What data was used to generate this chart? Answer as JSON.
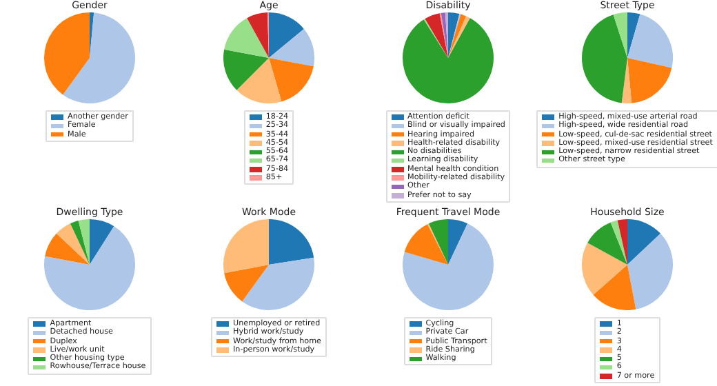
{
  "chart_data": [
    {
      "type": "pie",
      "title": "Gender",
      "categories": [
        "Another gender",
        "Female",
        "Male"
      ],
      "values": [
        1.5,
        58.5,
        40
      ],
      "colors": [
        "#1f77b4",
        "#aec7e8",
        "#ff7f0e"
      ],
      "legend": "bottom"
    },
    {
      "type": "pie",
      "title": "Age",
      "categories": [
        "18-24",
        "25-34",
        "35-44",
        "45-54",
        "55-64",
        "65-74",
        "75-84",
        "85+"
      ],
      "values": [
        14,
        14,
        17.5,
        17,
        15.5,
        14,
        7.5,
        0.5
      ],
      "colors": [
        "#1f77b4",
        "#aec7e8",
        "#ff7f0e",
        "#ffbb78",
        "#2ca02c",
        "#98df8a",
        "#d62728",
        "#ff9896"
      ],
      "legend": "bottom"
    },
    {
      "type": "pie",
      "title": "Disability",
      "categories": [
        "Attention deficit",
        "Blind or visually impaired",
        "Hearing impaired",
        "Health-related disability",
        "No disabilities",
        "Learning disability",
        "Mental health condition",
        "Mobility-related disability",
        "Other",
        "Prefer not to say"
      ],
      "values": [
        4,
        0.5,
        2,
        1.5,
        83,
        0.5,
        5.5,
        0.5,
        1.5,
        1
      ],
      "colors": [
        "#1f77b4",
        "#aec7e8",
        "#ff7f0e",
        "#ffbb78",
        "#2ca02c",
        "#98df8a",
        "#d62728",
        "#ff9896",
        "#9467bd",
        "#c5b0d5"
      ],
      "legend": "bottom"
    },
    {
      "type": "pie",
      "title": "Street Type",
      "categories": [
        "High-speed, mixed-use arterial road",
        "High-speed, wide residential road",
        "Low-speed, cul-de-sac residential street",
        "Low-speed, mixed-use residential street",
        "Low-speed, narrow residential street",
        "Other street type"
      ],
      "values": [
        4.5,
        24,
        20,
        3.5,
        43,
        5
      ],
      "colors": [
        "#1f77b4",
        "#aec7e8",
        "#ff7f0e",
        "#ffbb78",
        "#2ca02c",
        "#98df8a"
      ],
      "legend": "bottom"
    },
    {
      "type": "pie",
      "title": "Dwelling Type",
      "categories": [
        "Apartment",
        "Detached house",
        "Duplex",
        "Live/work unit",
        "Other housing type",
        "Rowhouse/Terrace house"
      ],
      "values": [
        9,
        69,
        9,
        6,
        3,
        4
      ],
      "colors": [
        "#1f77b4",
        "#aec7e8",
        "#ff7f0e",
        "#ffbb78",
        "#2ca02c",
        "#98df8a"
      ],
      "legend": "bottom"
    },
    {
      "type": "pie",
      "title": "Work Mode",
      "categories": [
        "Unemployed or retired",
        "Hybrid work/study",
        "Work/study from home",
        "In-person work/study"
      ],
      "values": [
        22.5,
        37.5,
        12,
        28
      ],
      "colors": [
        "#1f77b4",
        "#aec7e8",
        "#ff7f0e",
        "#ffbb78"
      ],
      "legend": "bottom"
    },
    {
      "type": "pie",
      "title": "Frequent Travel Mode",
      "categories": [
        "Cycling",
        "Private Car",
        "Public Transport",
        "Ride Sharing",
        "Walking"
      ],
      "values": [
        7,
        72.5,
        13,
        0.5,
        7
      ],
      "colors": [
        "#1f77b4",
        "#aec7e8",
        "#ff7f0e",
        "#ffbb78",
        "#2ca02c"
      ],
      "legend": "bottom"
    },
    {
      "type": "pie",
      "title": "Household Size",
      "categories": [
        "1",
        "2",
        "3",
        "4",
        "5",
        "6",
        "7 or more"
      ],
      "values": [
        13,
        34,
        16.5,
        19.5,
        11,
        2.5,
        3.5
      ],
      "colors": [
        "#1f77b4",
        "#aec7e8",
        "#ff7f0e",
        "#ffbb78",
        "#2ca02c",
        "#98df8a",
        "#d62728"
      ],
      "legend": "bottom"
    }
  ]
}
